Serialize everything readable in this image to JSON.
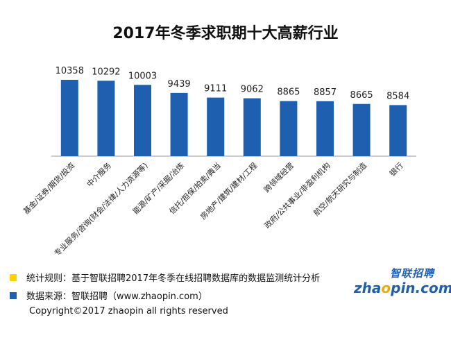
{
  "chart_data": {
    "type": "bar",
    "title": "2017年冬季求职期十大高薪行业",
    "categories": [
      "基金/证券/期货/投资",
      "中介服务",
      "专业服务/咨询(财会/法律/人力资源等)",
      "能源/矿产/采掘/冶炼",
      "信托/担保/拍卖/典当",
      "房地产/建筑/建材/工程",
      "跨领域经营",
      "政府/公共事业/非盈利机构",
      "航空/航天研究与制造",
      "银行"
    ],
    "values": [
      10358,
      10292,
      10003,
      9439,
      9111,
      9062,
      8865,
      8857,
      8665,
      8584
    ],
    "colors": {
      "bar": "#1f5fb0",
      "axis": "#999999"
    }
  },
  "notes": [
    {
      "text": "统计规则：基于智联招聘2017年冬季在线招聘数据库的数据监测统计分析",
      "color": "#ffd200"
    },
    {
      "text": "数据来源：智联招聘（www.zhaopin.com）",
      "color": "#1f5fb0"
    }
  ],
  "copyright": "Copyright©2017 zhaopin all rights reserved",
  "logo": {
    "cn": "智联招聘",
    "en_prefix": "zha",
    "en_o": "o",
    "en_suffix": "pin.com"
  }
}
